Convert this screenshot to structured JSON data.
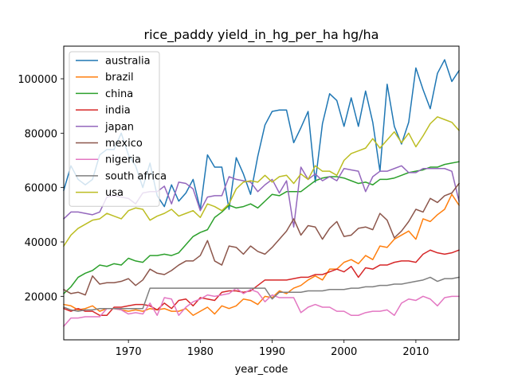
{
  "chart_data": {
    "type": "line",
    "title": "rice_paddy yield_in_hg_per_ha hg/ha",
    "xlabel": "year_code",
    "ylabel": "",
    "xlim": [
      1961,
      2016
    ],
    "ylim": [
      4000,
      112000
    ],
    "x_ticks": [
      1970,
      1980,
      1990,
      2000,
      2010
    ],
    "y_ticks": [
      20000,
      40000,
      60000,
      80000,
      100000
    ],
    "legend_position": "top-left",
    "x": [
      1961,
      1962,
      1963,
      1964,
      1965,
      1966,
      1967,
      1968,
      1969,
      1970,
      1971,
      1972,
      1973,
      1974,
      1975,
      1976,
      1977,
      1978,
      1979,
      1980,
      1981,
      1982,
      1983,
      1984,
      1985,
      1986,
      1987,
      1988,
      1989,
      1990,
      1991,
      1992,
      1993,
      1994,
      1995,
      1996,
      1997,
      1998,
      1999,
      2000,
      2001,
      2002,
      2003,
      2004,
      2005,
      2006,
      2007,
      2008,
      2009,
      2010,
      2011,
      2012,
      2013,
      2014,
      2015,
      2016
    ],
    "series": [
      {
        "name": "australia",
        "color": "#1f77b4",
        "values": [
          59000,
          68000,
          63000,
          61000,
          63000,
          72000,
          74000,
          74000,
          80000,
          72000,
          68000,
          60000,
          69000,
          57000,
          53000,
          61000,
          55000,
          58000,
          63000,
          52000,
          72000,
          67500,
          67500,
          52000,
          71000,
          65000,
          57500,
          71500,
          83000,
          88000,
          88500,
          88500,
          76500,
          82000,
          88000,
          62000,
          83500,
          94500,
          92000,
          82500,
          93000,
          82500,
          95500,
          84000,
          66000,
          98000,
          82500,
          76000,
          84000,
          104000,
          96000,
          89000,
          102000,
          107000,
          99000,
          103000
        ]
      },
      {
        "name": "brazil",
        "color": "#ff7f0e",
        "values": [
          17000,
          16500,
          15000,
          15500,
          16500,
          14500,
          15500,
          15500,
          15000,
          14500,
          15000,
          14500,
          15500,
          15000,
          15500,
          14500,
          14500,
          15500,
          13000,
          14500,
          16000,
          13500,
          16500,
          15500,
          16500,
          19000,
          18500,
          17000,
          20000,
          19500,
          22000,
          21000,
          23000,
          24000,
          26000,
          27500,
          26000,
          30000,
          30000,
          32500,
          33500,
          32000,
          35000,
          33500,
          38500,
          38000,
          41000,
          42500,
          44000,
          41000,
          48500,
          47500,
          50000,
          52000,
          57500,
          53500
        ]
      },
      {
        "name": "china",
        "color": "#2ca02c",
        "values": [
          21000,
          23500,
          27000,
          28500,
          29500,
          31500,
          31000,
          32000,
          31500,
          34000,
          33000,
          32500,
          35000,
          35000,
          35500,
          35000,
          36000,
          39000,
          42000,
          43500,
          44500,
          49000,
          51000,
          53500,
          52500,
          53000,
          54000,
          52500,
          55000,
          57500,
          57000,
          58500,
          58500,
          58500,
          60500,
          62500,
          63500,
          64000,
          64000,
          63500,
          62500,
          61500,
          62000,
          61000,
          63000,
          63000,
          63500,
          64500,
          65500,
          66000,
          66500,
          67500,
          67500,
          68500,
          69000,
          69500
        ]
      },
      {
        "name": "india",
        "color": "#d62728",
        "values": [
          15500,
          14500,
          15500,
          14500,
          14500,
          13000,
          13000,
          16000,
          16000,
          16500,
          17000,
          17000,
          16500,
          15000,
          17500,
          15500,
          18500,
          19000,
          16500,
          19500,
          19000,
          18500,
          21500,
          22000,
          22000,
          21500,
          22000,
          24000,
          26000,
          26000,
          26000,
          26000,
          26500,
          27000,
          27000,
          28000,
          28000,
          29000,
          30000,
          29000,
          31000,
          27000,
          30500,
          30000,
          31500,
          31500,
          32500,
          33000,
          33000,
          32500,
          35500,
          37000,
          36000,
          35500,
          36000,
          37000
        ]
      },
      {
        "name": "japan",
        "color": "#9467bd",
        "values": [
          48500,
          51000,
          51000,
          50500,
          50000,
          51000,
          56500,
          57000,
          56500,
          56000,
          54000,
          58000,
          58500,
          58500,
          60500,
          54000,
          62000,
          61500,
          59500,
          51500,
          56500,
          57000,
          57000,
          64000,
          63000,
          62500,
          62000,
          58500,
          61000,
          63000,
          58000,
          62500,
          45500,
          67500,
          63000,
          65000,
          62500,
          64000,
          62500,
          67000,
          66500,
          66000,
          58500,
          64000,
          66000,
          66000,
          67000,
          68000,
          65500,
          65500,
          67000,
          67000,
          67000,
          67000,
          66000,
          55000
        ]
      },
      {
        "name": "mexico",
        "color": "#8c564b",
        "values": [
          22500,
          21000,
          21500,
          20500,
          27500,
          24500,
          25000,
          25000,
          25500,
          26500,
          24000,
          26000,
          30000,
          28500,
          28000,
          29500,
          31500,
          33000,
          33000,
          35000,
          40500,
          33000,
          31500,
          38500,
          38000,
          35500,
          38500,
          36500,
          35500,
          38000,
          41000,
          44000,
          48500,
          42500,
          46000,
          45500,
          41000,
          45000,
          47500,
          42000,
          42500,
          45000,
          45500,
          44500,
          50500,
          48000,
          41500,
          44000,
          47500,
          52000,
          51000,
          56000,
          54500,
          57000,
          58000,
          61500
        ]
      },
      {
        "name": "nigeria",
        "color": "#e377c2",
        "values": [
          9000,
          12000,
          12000,
          12500,
          12500,
          12500,
          15500,
          15500,
          15000,
          13500,
          14000,
          13500,
          17500,
          13000,
          19500,
          19000,
          13000,
          16000,
          18000,
          19000,
          20500,
          20000,
          20500,
          21000,
          23000,
          21000,
          22500,
          21500,
          18000,
          20500,
          19500,
          19500,
          19500,
          14000,
          16000,
          17000,
          16000,
          16000,
          14500,
          14500,
          13000,
          13000,
          14000,
          14500,
          14500,
          15000,
          13000,
          17500,
          19000,
          18500,
          20000,
          19000,
          16500,
          19500,
          20000,
          20000
        ]
      },
      {
        "name": "south africa",
        "color": "#7f7f7f",
        "values": [
          16000,
          15000,
          14500,
          15000,
          15000,
          15500,
          15500,
          15500,
          15500,
          15500,
          15500,
          15500,
          23000,
          23000,
          23000,
          23000,
          23000,
          23000,
          23000,
          23000,
          23000,
          23000,
          23000,
          23000,
          23000,
          23000,
          23000,
          23000,
          23000,
          19000,
          21500,
          21500,
          21500,
          21500,
          22000,
          22000,
          22000,
          22500,
          22500,
          22500,
          23000,
          23000,
          23500,
          23500,
          24000,
          24000,
          24500,
          24500,
          25000,
          25500,
          26000,
          27000,
          25500,
          26500,
          26500,
          27000
        ]
      },
      {
        "name": "usa",
        "color": "#bcbd22",
        "values": [
          38500,
          42500,
          45000,
          46500,
          48000,
          48500,
          50500,
          49500,
          48500,
          51500,
          52500,
          52000,
          48000,
          49500,
          50500,
          52000,
          49500,
          50500,
          51500,
          49000,
          54000,
          53000,
          51500,
          54000,
          59500,
          62000,
          62500,
          62000,
          64500,
          62000,
          64000,
          64500,
          61500,
          65000,
          63000,
          68000,
          66000,
          66000,
          64500,
          70000,
          72500,
          73500,
          74500,
          78000,
          74500,
          77500,
          80500,
          76500,
          80000,
          75000,
          79000,
          83500,
          86000,
          85000,
          84000,
          81000
        ]
      }
    ]
  }
}
